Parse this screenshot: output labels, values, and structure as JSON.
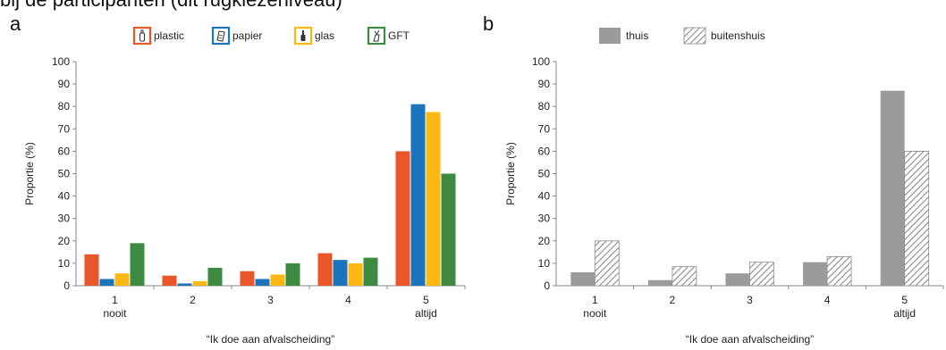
{
  "header_fragment": "bij de participanten (dit rugkiezeniveau)",
  "colors": {
    "plastic": "#E8562A",
    "papier": "#1B75BC",
    "glas": "#FDB913",
    "GFT": "#3D8B40",
    "thuis": "#9B9B9B",
    "buitenshuis_stroke": "#8C8C8C"
  },
  "chart_data": [
    {
      "panel": "a",
      "type": "bar",
      "categories": [
        "1",
        "2",
        "3",
        "4",
        "5"
      ],
      "category_sublabels": [
        "nooit",
        "",
        "",
        "",
        "altijd"
      ],
      "series": [
        {
          "name": "plastic",
          "icon": "bottle-icon",
          "values": [
            14,
            4.5,
            6.5,
            14.5,
            60
          ]
        },
        {
          "name": "papier",
          "icon": "paper-icon",
          "values": [
            3,
            1,
            3,
            11.5,
            81
          ]
        },
        {
          "name": "glas",
          "icon": "glass-bottle-icon",
          "values": [
            5.5,
            2,
            5,
            10,
            77.5
          ]
        },
        {
          "name": "GFT",
          "icon": "organic-waste-icon",
          "values": [
            19,
            8,
            10,
            12.5,
            50
          ]
        }
      ],
      "xlabel": "“Ik doe aan afvalscheiding”",
      "ylabel": "Proportie (%)",
      "ylim": [
        0,
        100
      ],
      "yticks": [
        0,
        10,
        20,
        30,
        40,
        50,
        60,
        70,
        80,
        90,
        100
      ],
      "grid": false,
      "legend_position": "top"
    },
    {
      "panel": "b",
      "type": "bar",
      "categories": [
        "1",
        "2",
        "3",
        "4",
        "5"
      ],
      "category_sublabels": [
        "nooit",
        "",
        "",
        "",
        "altijd"
      ],
      "series": [
        {
          "name": "thuis",
          "pattern": "solid",
          "values": [
            6,
            2.5,
            5.5,
            10.5,
            87
          ]
        },
        {
          "name": "buitenshuis",
          "pattern": "hatched",
          "values": [
            20,
            8.5,
            10.5,
            13,
            60
          ]
        }
      ],
      "xlabel": "“Ik doe aan afvalscheiding”",
      "ylabel": "Proportie (%)",
      "ylim": [
        0,
        100
      ],
      "yticks": [
        0,
        10,
        20,
        30,
        40,
        50,
        60,
        70,
        80,
        90,
        100
      ],
      "grid": false,
      "legend_position": "top"
    }
  ]
}
